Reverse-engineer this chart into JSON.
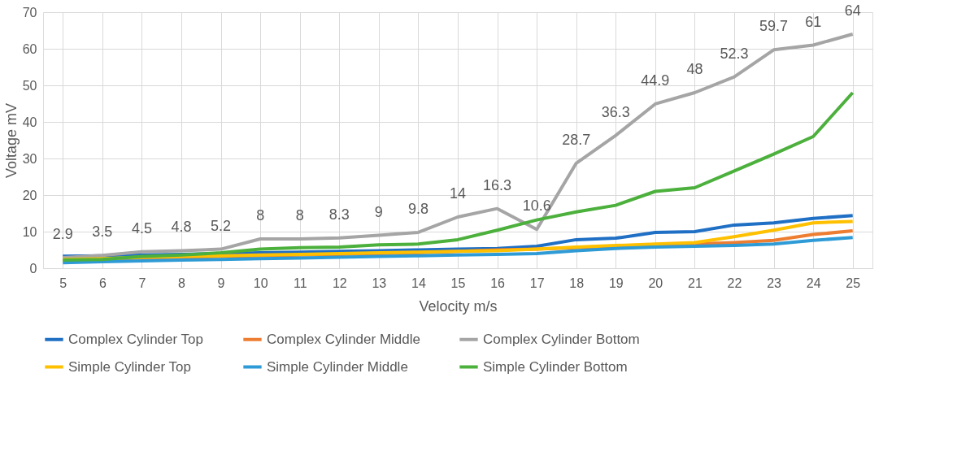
{
  "chart_data": {
    "type": "line",
    "xlabel": "Velocity m/s",
    "ylabel": "Voltage mV",
    "categories": [
      "5",
      "6",
      "7",
      "8",
      "9",
      "10",
      "11",
      "12",
      "13",
      "14",
      "15",
      "16",
      "17",
      "18",
      "19",
      "20",
      "21",
      "22",
      "23",
      "24",
      "25"
    ],
    "ylim": [
      0,
      70
    ],
    "yticks": [
      0,
      10,
      20,
      30,
      40,
      50,
      60,
      70
    ],
    "grid": true,
    "legend": "bottom",
    "marker": "none",
    "series": [
      {
        "name": "Complex Cylinder Top",
        "color": "#1f6fc5",
        "values": [
          3.3,
          3.4,
          3.6,
          3.8,
          4,
          4.2,
          4.4,
          4.6,
          4.8,
          5,
          5.2,
          5.4,
          6,
          7.8,
          8.2,
          9.8,
          10,
          11.8,
          12.4,
          13.6,
          14.4
        ]
      },
      {
        "name": "Complex Cylinder Middle",
        "color": "#ed7d31",
        "values": [
          2.2,
          2.4,
          2.8,
          3,
          3.2,
          3.4,
          3.6,
          3.8,
          4,
          4.2,
          4.6,
          5,
          5.2,
          5.6,
          6,
          6.4,
          6.6,
          7,
          7.6,
          9.2,
          10.2
        ]
      },
      {
        "name": "Complex Cylinder Bottom",
        "color": "#a5a5a5",
        "values": [
          2.9,
          3.5,
          4.5,
          4.8,
          5.2,
          8,
          8,
          8.3,
          9,
          9.8,
          14,
          16.3,
          10.6,
          28.7,
          36.3,
          44.9,
          48,
          52.3,
          59.7,
          61,
          64
        ],
        "value_labels": [
          "2.9",
          "3.5",
          "4.5",
          "4.8",
          "5.2",
          "8",
          "8",
          "8.3",
          "9",
          "9.8",
          "14",
          "16.3",
          "10.6",
          "28.7",
          "36.3",
          "44.9",
          "48",
          "52.3",
          "59.7",
          "61",
          "64"
        ]
      },
      {
        "name": "Simple Cylinder Top",
        "color": "#ffc000",
        "values": [
          2.4,
          2.6,
          3,
          3.2,
          3.4,
          3.6,
          3.8,
          4,
          4.2,
          4.4,
          4.6,
          4.8,
          5.2,
          5.8,
          6.2,
          6.6,
          7,
          8.6,
          10.4,
          12.4,
          12.8
        ]
      },
      {
        "name": "Simple Cylinder Middle",
        "color": "#2e9bd6",
        "values": [
          1.5,
          1.8,
          2,
          2.2,
          2.4,
          2.6,
          2.8,
          3,
          3.2,
          3.4,
          3.6,
          3.8,
          4,
          4.8,
          5.4,
          5.8,
          6,
          6.2,
          6.6,
          7.6,
          8.4
        ]
      },
      {
        "name": "Simple Cylinder Bottom",
        "color": "#4cb03c",
        "values": [
          2.2,
          2.4,
          3.2,
          3.6,
          4.2,
          5.2,
          5.6,
          5.8,
          6.4,
          6.6,
          7.8,
          10.4,
          13.2,
          15.4,
          17.2,
          21,
          22,
          26.6,
          31.2,
          36,
          48
        ]
      }
    ]
  }
}
